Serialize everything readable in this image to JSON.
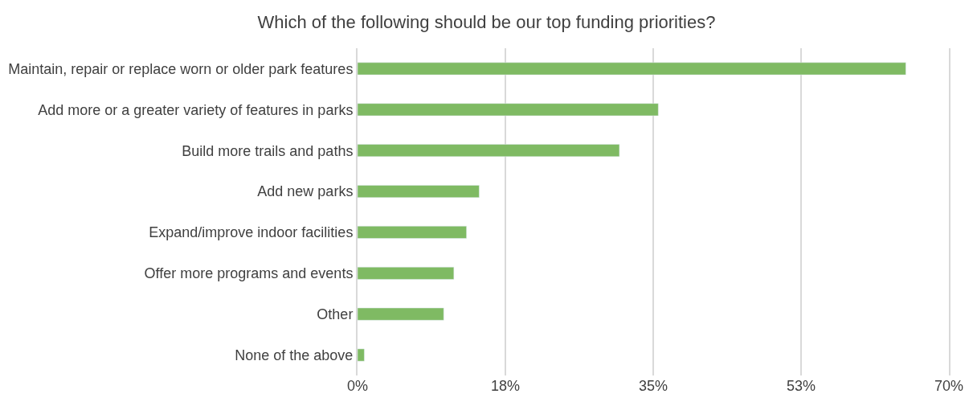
{
  "chart_data": {
    "type": "bar",
    "orientation": "horizontal",
    "title": "Which of the following should be our top funding priorities?",
    "categories": [
      "Maintain, repair or replace worn or older park features",
      "Add more or a greater variety of features in parks",
      "Build more trails and paths",
      "Add new parks",
      "Expand/improve indoor facilities",
      "Offer more programs and events",
      "Other",
      "None of the above"
    ],
    "values": [
      64.9,
      35.6,
      31.0,
      14.4,
      12.9,
      11.4,
      10.2,
      0.8
    ],
    "color": "#7fba63",
    "xlim": [
      0,
      70
    ],
    "xticks": [
      {
        "value": 0,
        "label": "0%"
      },
      {
        "value": 17.5,
        "label": "18%"
      },
      {
        "value": 35,
        "label": "35%"
      },
      {
        "value": 52.5,
        "label": "53%"
      },
      {
        "value": 70,
        "label": "70%"
      }
    ],
    "grid": "x"
  }
}
